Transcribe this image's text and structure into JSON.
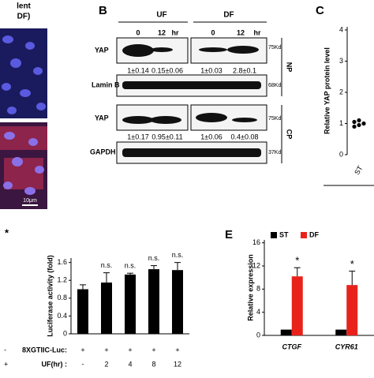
{
  "panel_labels": [
    "B",
    "C",
    "E"
  ],
  "panel_a": {
    "title_lines": [
      "lent",
      "DF)"
    ],
    "scale_bar": "10μm"
  },
  "blot": {
    "conditions": [
      "UF",
      "DF"
    ],
    "lanes": [
      "0",
      "12",
      "hr",
      "0",
      "12",
      "hr"
    ],
    "np_label": "NP",
    "cp_label": "CP",
    "rows": [
      {
        "label": "YAP",
        "kd": "75Kd",
        "quant": [
          "1±0.14",
          "0.15±0.06",
          "1±0.03",
          "2.8±0.1"
        ]
      },
      {
        "label": "Lamin B",
        "kd": "68Kd"
      },
      {
        "label": "YAP",
        "kd": "75Kd",
        "quant": [
          "1±0.17",
          "0.95±0.11",
          "1±0.06",
          "0.4±0.08"
        ]
      },
      {
        "label": "GAPDH",
        "kd": "37Kd"
      }
    ]
  },
  "left_partial": {
    "texts": [
      "*",
      "-",
      "+"
    ]
  },
  "chart_data": [
    {
      "type": "scatter",
      "ylabel": "Relative YAP protein level",
      "categories": [
        "ST"
      ],
      "values": [
        1.05,
        0.95,
        1.0,
        0.9,
        1.1
      ],
      "color": "#000000",
      "ylim": [
        0,
        4.1
      ],
      "yticks": [
        0,
        1,
        2,
        3,
        4
      ]
    },
    {
      "type": "bar",
      "ylabel": "Luciferase activity (fold)",
      "row_labels": [
        "8XGTIIC-Luc:",
        "UF(hr) :"
      ],
      "luc_row": [
        "+",
        "+",
        "+",
        "+",
        "+"
      ],
      "categories": [
        "-",
        "2",
        "4",
        "8",
        "12"
      ],
      "values": [
        1.0,
        1.15,
        1.33,
        1.45,
        1.43
      ],
      "errors": [
        0.1,
        0.22,
        0.03,
        0.08,
        0.17
      ],
      "annotations": [
        null,
        "n.s.",
        "n.s.",
        "n.s.",
        "n.s."
      ],
      "color": "#000000",
      "ylim": [
        0,
        1.7
      ],
      "yticks": [
        0,
        0.4,
        0.8,
        1.2,
        1.6
      ]
    },
    {
      "type": "grouped_bar",
      "ylabel": "Relative expression",
      "categories": [
        "CTGF",
        "CYR61"
      ],
      "series": [
        {
          "name": "ST",
          "color": "#000000",
          "values": [
            1,
            1
          ],
          "errors": [
            0,
            0
          ]
        },
        {
          "name": "DF",
          "color": "#e8221b",
          "values": [
            10.2,
            8.7
          ],
          "errors": [
            1.5,
            2.4
          ],
          "annotations": [
            "*",
            "*"
          ]
        }
      ],
      "ylim": [
        0,
        16.5
      ],
      "yticks": [
        0,
        4,
        8,
        12,
        16
      ]
    }
  ]
}
